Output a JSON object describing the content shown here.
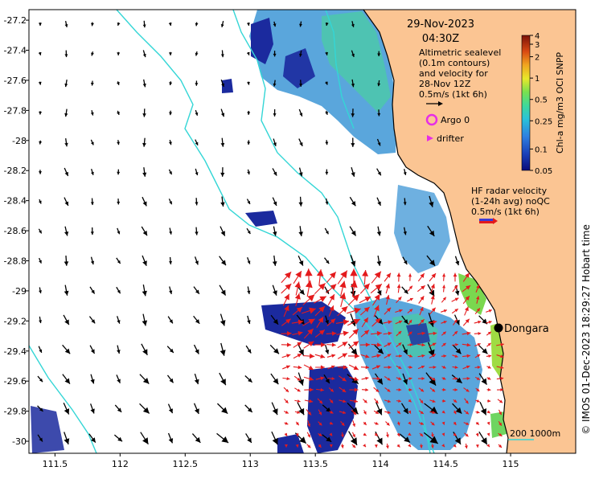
{
  "map": {
    "date": "29-Nov-2023",
    "time": "04:30Z",
    "altimetry_note": [
      "Altimetric sealevel",
      "(0.1m contours)",
      "and velocity for",
      "28-Nov 12Z",
      "0.5m/s (1kt 6h)"
    ],
    "argo_label": "Argo 0",
    "drifter_label": "drifter",
    "hf_radar_note": [
      "HF radar velocity",
      "(1-24h avg) noQC",
      "0.5m/s (1kt 6h)"
    ],
    "place_label": "Dongara",
    "depth_contours_label": "200  1000m",
    "credit": "© IMOS 01-Dec-2023 18:29:27 Hobart time",
    "colorbar": {
      "label": "Chl-a mg/m3 OCI SNPP",
      "ticks": [
        "0.05",
        "0.1",
        "0.25",
        "0.5",
        "1",
        "2",
        "3",
        "4"
      ]
    },
    "lon_ticks": [
      "111.5",
      "112",
      "112.5",
      "113",
      "113.5",
      "114",
      "114.5",
      "115"
    ],
    "lat_ticks": [
      "-27.2",
      "-27.4",
      "-27.6",
      "-27.8",
      "-28",
      "-28.2",
      "-28.4",
      "-28.6",
      "-28.8",
      "-29",
      "-29.2",
      "-29.4",
      "-29.6",
      "-29.8",
      "-30"
    ],
    "lon_range": [
      111.3,
      115.5
    ],
    "lat_range": [
      -30.08,
      -27.13
    ],
    "colors": {
      "land": "#fbc593",
      "chl_low": "#1a1a8c",
      "chl_mid": "#3a9ad9",
      "chl_high": "#49c9a8",
      "contour": "#34d6d6",
      "argo": "#e62ee6",
      "radar_arrow": "#e41a1c",
      "altimetry_arrow": "#000000"
    }
  }
}
